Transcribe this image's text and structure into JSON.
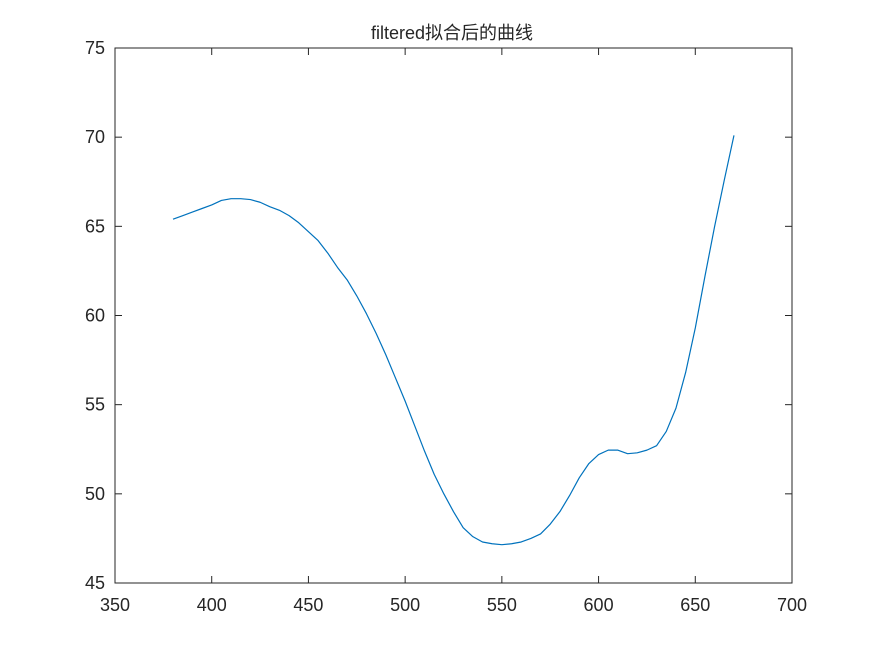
{
  "chart_data": {
    "type": "line",
    "title": "filtered拟合后的曲线",
    "xlabel": "",
    "ylabel": "",
    "xlim": [
      350,
      700
    ],
    "ylim": [
      45,
      75
    ],
    "xticks": [
      350,
      400,
      450,
      500,
      550,
      600,
      650,
      700
    ],
    "yticks": [
      45,
      50,
      55,
      60,
      65,
      70,
      75
    ],
    "grid": false,
    "line_color": "#0072bd",
    "axis_color": "#262626",
    "series": [
      {
        "x": [
          380,
          385,
          390,
          395,
          400,
          405,
          410,
          415,
          420,
          425,
          430,
          435,
          440,
          445,
          450,
          455,
          460,
          465,
          470,
          475,
          480,
          485,
          490,
          495,
          500,
          505,
          510,
          515,
          520,
          525,
          530,
          535,
          540,
          545,
          550,
          555,
          560,
          565,
          570,
          575,
          580,
          585,
          590,
          595,
          600,
          605,
          610,
          615,
          620,
          625,
          630,
          635,
          640,
          645,
          650,
          655,
          660,
          665,
          670
        ],
        "y": [
          65.4,
          65.6,
          65.8,
          66.0,
          66.2,
          66.45,
          66.55,
          66.55,
          66.5,
          66.35,
          66.1,
          65.9,
          65.6,
          65.2,
          64.7,
          64.2,
          63.5,
          62.7,
          62.0,
          61.1,
          60.1,
          59.0,
          57.8,
          56.5,
          55.2,
          53.8,
          52.4,
          51.1,
          50.0,
          49.0,
          48.1,
          47.6,
          47.3,
          47.2,
          47.15,
          47.2,
          47.3,
          47.5,
          47.75,
          48.3,
          49.0,
          49.9,
          50.9,
          51.7,
          52.2,
          52.45,
          52.45,
          52.25,
          52.3,
          52.45,
          52.7,
          53.5,
          54.8,
          56.8,
          59.3,
          62.2,
          65.0,
          67.6,
          70.1
        ]
      }
    ]
  }
}
